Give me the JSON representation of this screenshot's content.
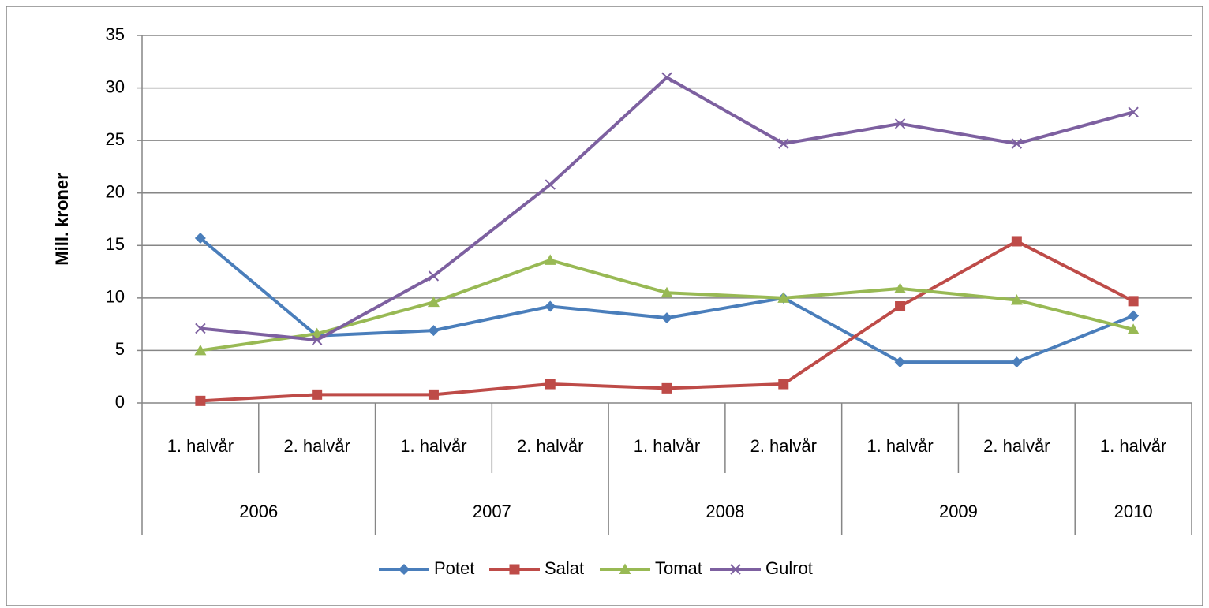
{
  "chart_data": {
    "type": "line",
    "y_label": "Mill. kroner",
    "categories": [
      "1. halvår",
      "2. halvår",
      "1. halvår",
      "2. halvår",
      "1. halvår",
      "2. halvår",
      "1. halvår",
      "2. halvår",
      "1. halvår"
    ],
    "x_groups": [
      {
        "label": "2006",
        "count": 2
      },
      {
        "label": "2007",
        "count": 2
      },
      {
        "label": "2008",
        "count": 2
      },
      {
        "label": "2009",
        "count": 2
      },
      {
        "label": "2010",
        "count": 1
      }
    ],
    "series": [
      {
        "name": "Potet",
        "color": "#4a7ebb",
        "marker": "diamond",
        "values": [
          15.7,
          6.4,
          6.9,
          9.2,
          8.1,
          10.0,
          3.9,
          3.9,
          8.3
        ]
      },
      {
        "name": "Salat",
        "color": "#be4b48",
        "marker": "square",
        "values": [
          0.2,
          0.8,
          0.8,
          1.8,
          1.4,
          1.8,
          9.2,
          15.4,
          9.7
        ]
      },
      {
        "name": "Tomat",
        "color": "#98b954",
        "marker": "triangle",
        "values": [
          5.0,
          6.6,
          9.6,
          13.6,
          10.5,
          10.0,
          10.9,
          9.8,
          7.0
        ]
      },
      {
        "name": "Gulrot",
        "color": "#7d60a0",
        "marker": "x",
        "values": [
          7.1,
          6.0,
          12.1,
          20.8,
          31.0,
          24.7,
          26.6,
          24.7,
          27.7
        ]
      }
    ],
    "ylim": [
      0,
      35
    ],
    "yticks": [
      0,
      5,
      10,
      15,
      20,
      25,
      30,
      35
    ],
    "grid": true,
    "legend": "bottom"
  }
}
